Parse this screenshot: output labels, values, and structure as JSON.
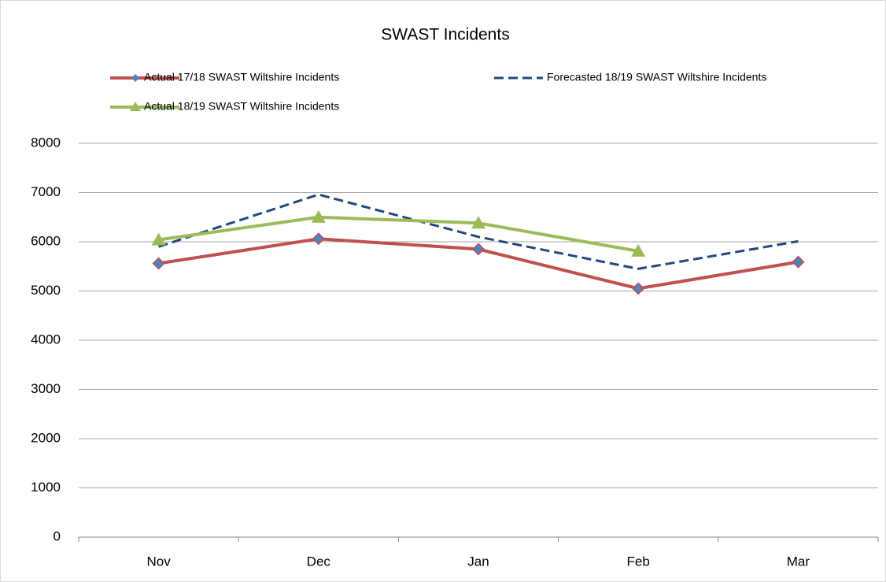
{
  "chart_data": {
    "type": "line",
    "title": "SWAST Incidents",
    "categories": [
      "Nov",
      "Dec",
      "Jan",
      "Feb",
      "Mar"
    ],
    "series": [
      {
        "name": "Actual 17/18 SWAST Wiltshire Incidents",
        "color": "#c0504d",
        "marker": "diamond",
        "marker_color": "#4f81bd",
        "dashed": false,
        "values": [
          5560,
          6060,
          5850,
          5050,
          5590
        ]
      },
      {
        "name": "Forecasted 18/19  SWAST Wiltshire Incidents",
        "color": "#1f497d",
        "marker": "none",
        "dashed": true,
        "values": [
          5900,
          6960,
          6100,
          5450,
          6010
        ]
      },
      {
        "name": "Actual 18/19 SWAST Wiltshire Incidents",
        "color": "#9bbb59",
        "marker": "triangle",
        "marker_color": "#9bbb59",
        "dashed": false,
        "values": [
          6040,
          6500,
          6380,
          5810,
          null
        ]
      }
    ],
    "ylim": [
      0,
      8000
    ],
    "yticks": [
      0,
      1000,
      2000,
      3000,
      4000,
      5000,
      6000,
      7000,
      8000
    ],
    "grid": true
  }
}
